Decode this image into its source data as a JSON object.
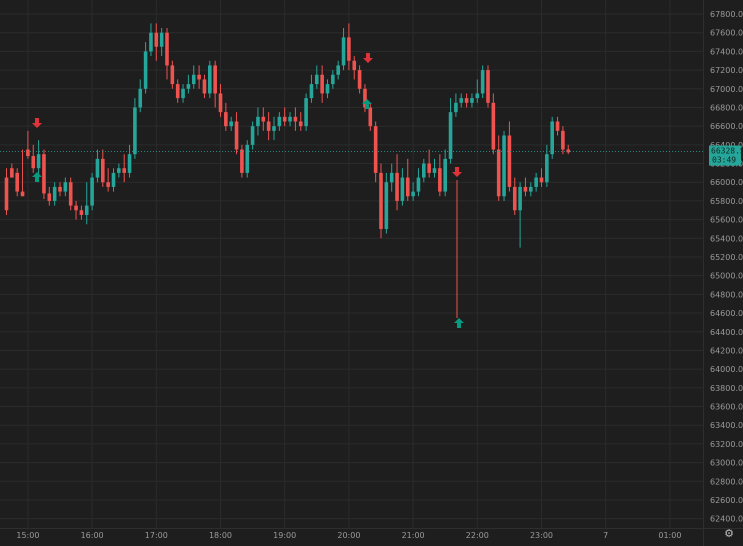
{
  "colors": {
    "background": "#1e1e1e",
    "grid": "#2b2b2b",
    "up": "#26a69a",
    "down": "#ef5350",
    "axis_text": "#9a9a9a",
    "price_line": "#26a69a",
    "buy_arrow": "#089981",
    "sell_arrow": "#e0323b"
  },
  "price_tag": {
    "price": "66328.5",
    "countdown": "03:49"
  },
  "settings_icon": "gear-icon",
  "chart_data": {
    "type": "candlestick",
    "current_price": 66328.5,
    "y_axis": {
      "ylim": [
        62300,
        67950
      ],
      "tick_labels": [
        "62400.0",
        "62600.0",
        "62800.0",
        "63000.0",
        "63200.0",
        "63400.0",
        "63600.0",
        "63800.0",
        "64000.0",
        "64200.0",
        "64400.0",
        "64600.0",
        "64800.0",
        "65000.0",
        "65200.0",
        "65400.0",
        "65600.0",
        "65800.0",
        "66000.0",
        "66200.0",
        "66400.0",
        "66600.0",
        "66800.0",
        "67000.0",
        "67200.0",
        "67400.0",
        "67600.0",
        "67800.0"
      ],
      "tick_values": [
        62400,
        62600,
        62800,
        63000,
        63200,
        63400,
        63600,
        63800,
        64000,
        64200,
        64400,
        64600,
        64800,
        65000,
        65200,
        65400,
        65600,
        65800,
        66000,
        66200,
        66400,
        66600,
        66800,
        67000,
        67200,
        67400,
        67600,
        67800
      ]
    },
    "x_axis": {
      "tick_labels": [
        "15:00",
        "16:00",
        "17:00",
        "18:00",
        "19:00",
        "20:00",
        "21:00",
        "22:00",
        "23:00",
        "7",
        "01:00"
      ],
      "tick_index": [
        4,
        16,
        28,
        40,
        52,
        64,
        76,
        88,
        100,
        112,
        124
      ]
    },
    "candles": [
      [
        66050,
        66150,
        65700,
        65650
      ],
      [
        66150,
        66200,
        66050,
        66100
      ],
      [
        66100,
        66150,
        65900,
        65850
      ],
      [
        65900,
        66350,
        65850,
        65880
      ],
      [
        66350,
        66550,
        66280,
        66250
      ],
      [
        66280,
        66400,
        66150,
        66100
      ],
      [
        66150,
        66450,
        66300,
        66080
      ],
      [
        66300,
        66350,
        65880,
        65820
      ],
      [
        65880,
        65950,
        65800,
        65750
      ],
      [
        65800,
        66000,
        65950,
        65750
      ],
      [
        65950,
        66000,
        65900,
        65850
      ],
      [
        65900,
        66050,
        66000,
        65850
      ],
      [
        66000,
        66050,
        65750,
        65700
      ],
      [
        65750,
        65800,
        65700,
        65600
      ],
      [
        65700,
        65750,
        65650,
        65600
      ],
      [
        65650,
        66000,
        65750,
        65550
      ],
      [
        65750,
        66100,
        66050,
        65700
      ],
      [
        66050,
        66350,
        66250,
        66000
      ],
      [
        66250,
        66350,
        66000,
        65950
      ],
      [
        66000,
        66150,
        65950,
        65900
      ],
      [
        65950,
        66150,
        66100,
        65900
      ],
      [
        66100,
        66200,
        66150,
        66050
      ],
      [
        66150,
        66300,
        66100,
        66000
      ],
      [
        66100,
        66400,
        66300,
        66050
      ],
      [
        66300,
        66900,
        66800,
        66250
      ],
      [
        66800,
        67100,
        67000,
        66750
      ],
      [
        67000,
        67500,
        67400,
        66950
      ],
      [
        67400,
        67700,
        67600,
        67350
      ],
      [
        67600,
        67700,
        67450,
        67300
      ],
      [
        67450,
        67650,
        67600,
        67350
      ],
      [
        67600,
        67650,
        67250,
        67100
      ],
      [
        67250,
        67300,
        67050,
        67000
      ],
      [
        67050,
        67100,
        66900,
        66850
      ],
      [
        66900,
        67050,
        67000,
        66850
      ],
      [
        67000,
        67150,
        67050,
        66950
      ],
      [
        67050,
        67250,
        67150,
        67000
      ],
      [
        67150,
        67250,
        67100,
        67000
      ],
      [
        67100,
        67150,
        66950,
        66900
      ],
      [
        66950,
        67300,
        67250,
        66900
      ],
      [
        67250,
        67300,
        66950,
        66800
      ],
      [
        66950,
        67050,
        66750,
        66700
      ],
      [
        66750,
        66850,
        66600,
        66550
      ],
      [
        66600,
        66700,
        66650,
        66550
      ],
      [
        66650,
        66750,
        66350,
        66300
      ],
      [
        66350,
        66400,
        66100,
        66050
      ],
      [
        66100,
        66450,
        66400,
        66050
      ],
      [
        66400,
        66650,
        66600,
        66350
      ],
      [
        66600,
        66800,
        66700,
        66500
      ],
      [
        66700,
        66800,
        66650,
        66550
      ],
      [
        66650,
        66750,
        66550,
        66450
      ],
      [
        66550,
        66700,
        66600,
        66450
      ],
      [
        66600,
        66750,
        66700,
        66550
      ],
      [
        66700,
        66800,
        66650,
        66600
      ],
      [
        66650,
        66750,
        66700,
        66600
      ],
      [
        66700,
        66800,
        66650,
        66550
      ],
      [
        66650,
        66750,
        66600,
        66550
      ],
      [
        66600,
        66950,
        66900,
        66550
      ],
      [
        66900,
        67150,
        67050,
        66850
      ],
      [
        67050,
        67250,
        67150,
        67000
      ],
      [
        67150,
        67250,
        66950,
        66850
      ],
      [
        66950,
        67100,
        67050,
        66900
      ],
      [
        67050,
        67200,
        67150,
        67000
      ],
      [
        67150,
        67300,
        67250,
        67100
      ],
      [
        67250,
        67650,
        67550,
        67200
      ],
      [
        67550,
        67700,
        67300,
        67200
      ],
      [
        67300,
        67350,
        67200,
        67100
      ],
      [
        67200,
        67250,
        67000,
        66950
      ],
      [
        67000,
        67050,
        66800,
        66750
      ],
      [
        66800,
        66850,
        66600,
        66550
      ],
      [
        66600,
        66650,
        66100,
        66000
      ],
      [
        66100,
        66200,
        65500,
        65400
      ],
      [
        65500,
        66100,
        66000,
        65450
      ],
      [
        66000,
        66200,
        66100,
        65900
      ],
      [
        66100,
        66300,
        65800,
        65700
      ],
      [
        65800,
        66150,
        66050,
        65750
      ],
      [
        66050,
        66250,
        65850,
        65800
      ],
      [
        65850,
        66000,
        65900,
        65800
      ],
      [
        65900,
        66150,
        66050,
        65850
      ],
      [
        66050,
        66250,
        66200,
        66000
      ],
      [
        66200,
        66350,
        66100,
        66050
      ],
      [
        66100,
        66250,
        66150,
        66050
      ],
      [
        66150,
        66300,
        65900,
        65850
      ],
      [
        65900,
        66350,
        66250,
        65850
      ],
      [
        66250,
        66900,
        66750,
        66200
      ],
      [
        66750,
        66950,
        66850,
        66700
      ],
      [
        66850,
        66950,
        66900,
        66800
      ],
      [
        66900,
        66950,
        66850,
        66800
      ],
      [
        66850,
        66950,
        66900,
        66800
      ],
      [
        66900,
        67100,
        66950,
        66850
      ],
      [
        66950,
        67250,
        67200,
        66900
      ],
      [
        67200,
        67250,
        66850,
        66800
      ],
      [
        66850,
        66950,
        66350,
        66300
      ],
      [
        66350,
        66500,
        65850,
        65800
      ],
      [
        65850,
        66550,
        66500,
        65800
      ],
      [
        66500,
        66650,
        65950,
        65900
      ],
      [
        65950,
        66050,
        65700,
        65650
      ],
      [
        65700,
        66000,
        65950,
        65300
      ],
      [
        65950,
        66050,
        65900,
        65850
      ],
      [
        65900,
        66000,
        65950,
        65850
      ],
      [
        65950,
        66100,
        66050,
        65900
      ],
      [
        66050,
        66150,
        66000,
        65950
      ],
      [
        66000,
        66400,
        66300,
        65950
      ],
      [
        66300,
        66700,
        66650,
        66250
      ],
      [
        66650,
        66700,
        66550,
        66500
      ],
      [
        66550,
        66600,
        66350,
        66300
      ],
      [
        66350,
        66400,
        66320,
        66300
      ]
    ]
  }
}
